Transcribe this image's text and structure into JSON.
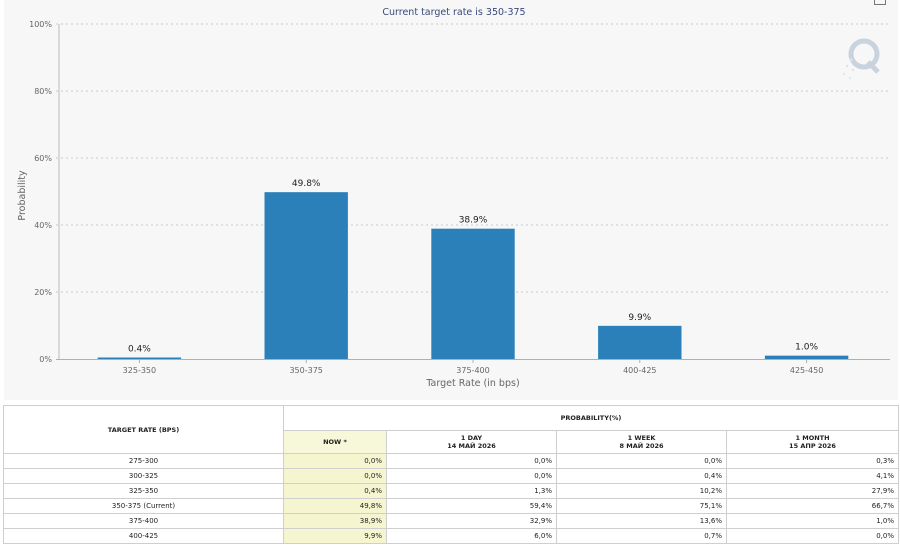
{
  "chart_data": {
    "type": "bar",
    "title": "",
    "subtitle": "Current target rate is 350-375",
    "xlabel": "Target Rate (in bps)",
    "ylabel": "Probability",
    "categories": [
      "325-350",
      "350-375",
      "375-400",
      "400-425",
      "425-450"
    ],
    "values": [
      0.4,
      49.8,
      38.9,
      9.9,
      1.0
    ],
    "data_labels": [
      "0.4%",
      "49.8%",
      "38.9%",
      "9.9%",
      "1.0%"
    ],
    "ylim": [
      0,
      100
    ],
    "yticks": [
      "0%",
      "20%",
      "40%",
      "60%",
      "80%",
      "100%"
    ],
    "grid": true,
    "bar_color": "#2b80b9"
  },
  "table": {
    "header_rate": "TARGET RATE (BPS)",
    "header_prob": "PROBABILITY(%)",
    "columns": [
      {
        "label": "NOW *",
        "date": ""
      },
      {
        "label": "1 DAY",
        "date": "14 МАЙ 2026"
      },
      {
        "label": "1 WEEK",
        "date": "8 МАЙ 2026"
      },
      {
        "label": "1 MONTH",
        "date": "15 АПР 2026"
      }
    ],
    "rows": [
      {
        "rate": "275-300",
        "values": [
          "0,0%",
          "0,0%",
          "0,0%",
          "0,3%"
        ]
      },
      {
        "rate": "300-325",
        "values": [
          "0,0%",
          "0,0%",
          "0,4%",
          "4,1%"
        ]
      },
      {
        "rate": "325-350",
        "values": [
          "0,4%",
          "1,3%",
          "10,2%",
          "27,9%"
        ]
      },
      {
        "rate": "350-375 (Current)",
        "values": [
          "49,8%",
          "59,4%",
          "75,1%",
          "66,7%"
        ]
      },
      {
        "rate": "375-400",
        "values": [
          "38,9%",
          "32,9%",
          "13,6%",
          "1,0%"
        ]
      },
      {
        "rate": "400-425",
        "values": [
          "9,9%",
          "6,0%",
          "0,7%",
          "0,0%"
        ]
      }
    ]
  },
  "colors": {
    "accent": "#2b80b9",
    "now_column": "#f5f5cf",
    "subtitle": "#3a4a7a"
  }
}
